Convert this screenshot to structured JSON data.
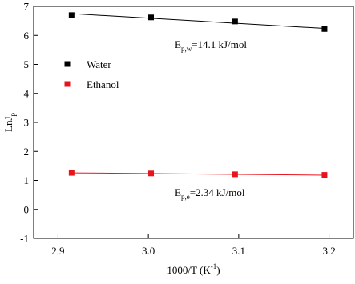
{
  "chart_data": {
    "type": "scatter",
    "x_label": [
      "1000/T (K",
      "-1",
      ")"
    ],
    "y_label": [
      "LnJ",
      "p"
    ],
    "xlim": [
      2.873,
      3.227
    ],
    "xticks": [
      2.9,
      {
        "value": 3,
        "label": "3.0"
      },
      3.1,
      3.2
    ],
    "ylim": [
      -1,
      7
    ],
    "yticks": [
      -1,
      0,
      1,
      2,
      3,
      4,
      5,
      6,
      7
    ],
    "legend_position": "center left",
    "series": [
      {
        "name": "Water",
        "color": "#000000",
        "x": [
          2.915,
          3.003,
          3.096,
          3.195
        ],
        "values": [
          6.7,
          6.62,
          6.48,
          6.22
        ]
      },
      {
        "name": "Ethanol",
        "color": "#e8141c",
        "x": [
          2.915,
          3.003,
          3.096,
          3.195
        ],
        "values": [
          1.26,
          1.24,
          1.21,
          1.19
        ]
      }
    ],
    "fit_lines": [
      {
        "color": "#000000",
        "x": [
          2.915,
          3.195
        ],
        "values": [
          6.75,
          6.24
        ]
      },
      {
        "color": "#e8141c",
        "x": [
          2.915,
          3.195
        ],
        "values": [
          1.26,
          1.18
        ]
      }
    ],
    "annotations": [
      {
        "parts": [
          "E",
          "p,w",
          "=14.1 kJ/mol"
        ]
      },
      {
        "parts": [
          "E",
          "p,e",
          "=2.34 kJ/mol"
        ]
      }
    ]
  }
}
